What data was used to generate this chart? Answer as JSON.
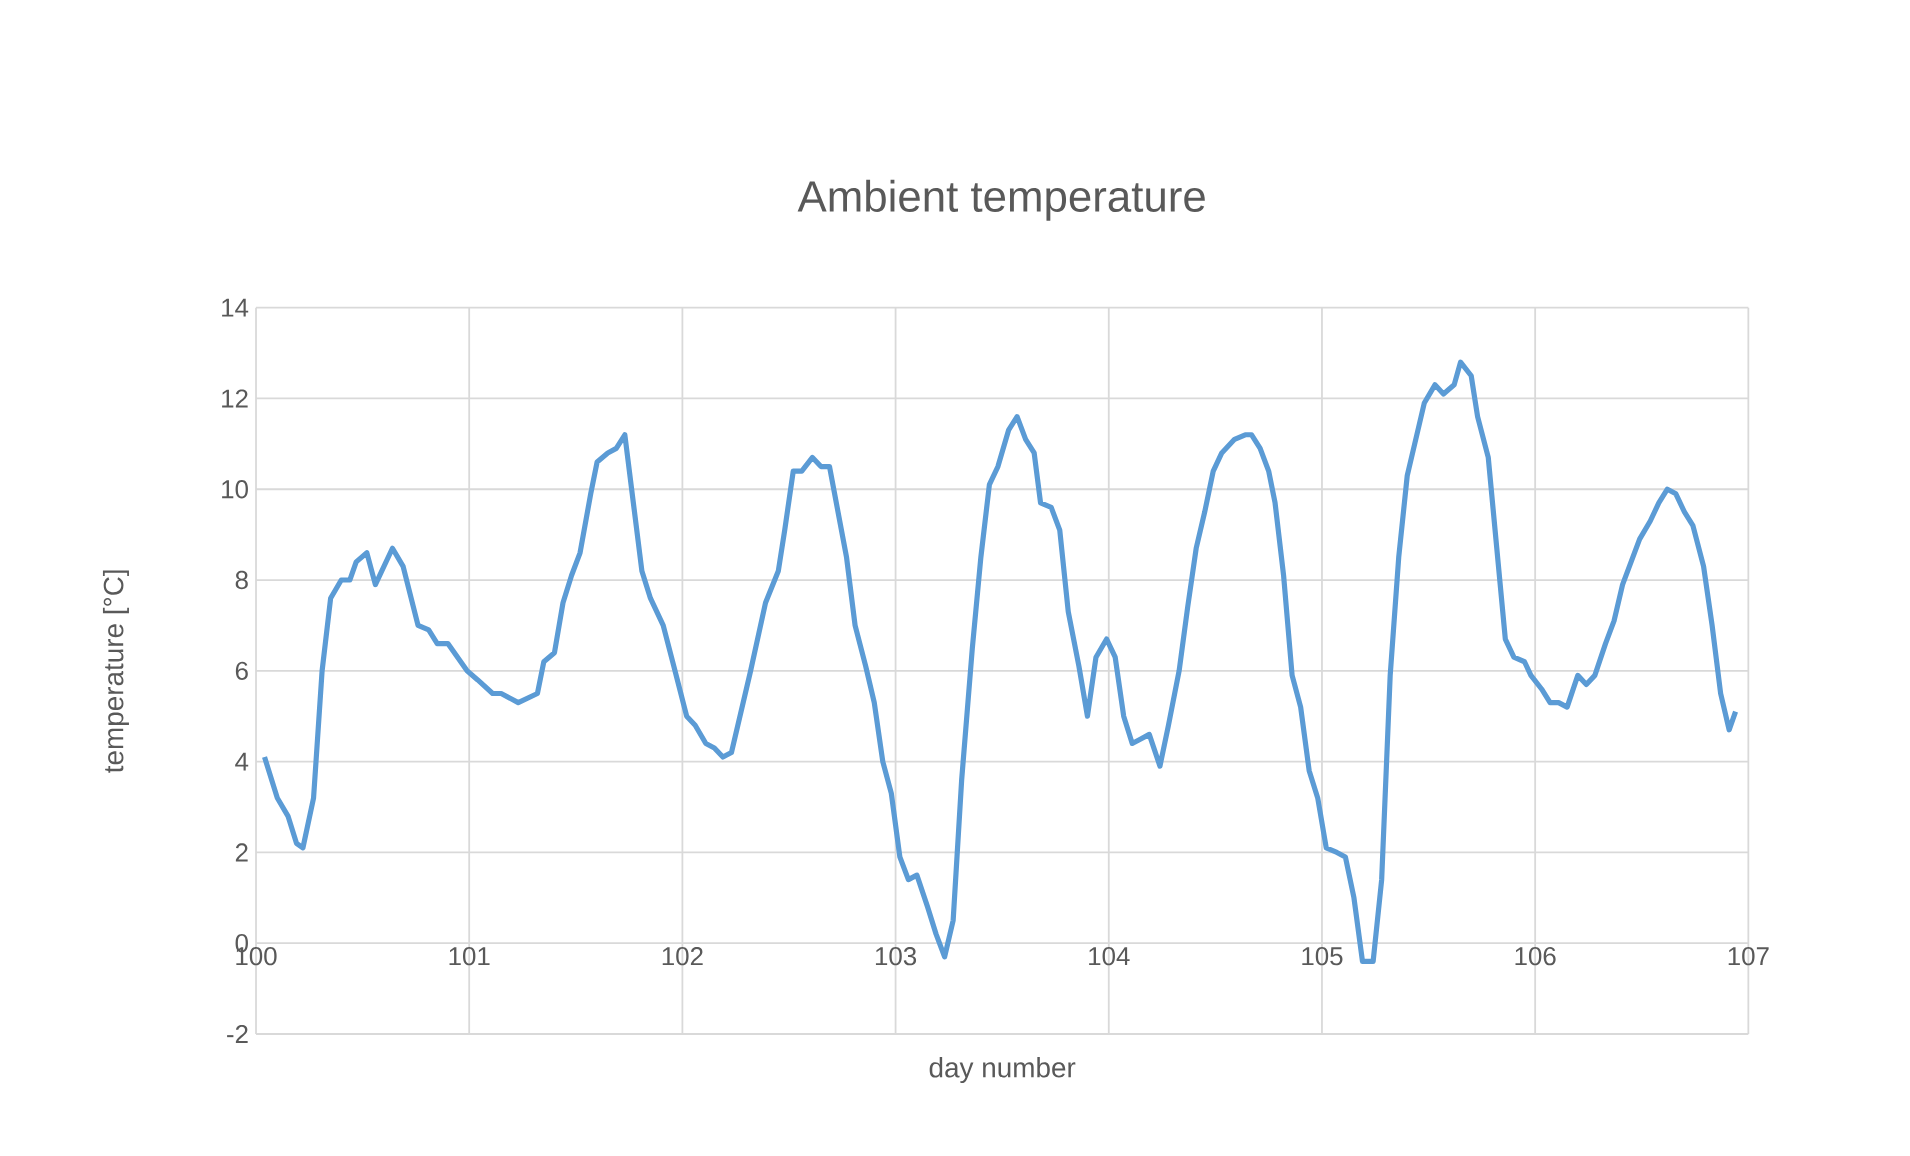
{
  "chart_data": {
    "type": "line",
    "title": "Ambient temperature",
    "xlabel": "day number",
    "ylabel": "temperature [°C]",
    "xlim": [
      100,
      107
    ],
    "xticks": [
      100,
      101,
      102,
      103,
      104,
      105,
      106,
      107
    ],
    "ylim": [
      -2,
      14
    ],
    "yticks": [
      -2,
      0,
      2,
      4,
      6,
      8,
      10,
      12,
      14
    ],
    "grid": true,
    "marker": "none",
    "line_style": "solid",
    "series": [
      {
        "color": "#5b9bd5",
        "x": [
          100.04,
          100.1,
          100.15,
          100.19,
          100.22,
          100.27,
          100.31,
          100.35,
          100.4,
          100.44,
          100.47,
          100.52,
          100.56,
          100.64,
          100.69,
          100.76,
          100.81,
          100.85,
          100.9,
          100.99,
          101.04,
          101.11,
          101.15,
          101.23,
          101.32,
          101.35,
          101.4,
          101.44,
          101.48,
          101.52,
          101.57,
          101.6,
          101.65,
          101.69,
          101.73,
          101.77,
          101.81,
          101.85,
          101.91,
          101.96,
          102.02,
          102.06,
          102.11,
          102.15,
          102.19,
          102.23,
          102.32,
          102.39,
          102.45,
          102.48,
          102.52,
          102.56,
          102.61,
          102.65,
          102.69,
          102.73,
          102.77,
          102.81,
          102.86,
          102.9,
          102.94,
          102.98,
          103.02,
          103.06,
          103.1,
          103.15,
          103.19,
          103.23,
          103.27,
          103.31,
          103.36,
          103.4,
          103.44,
          103.48,
          103.53,
          103.57,
          103.61,
          103.65,
          103.68,
          103.73,
          103.77,
          103.81,
          103.86,
          103.9,
          103.94,
          103.99,
          104.03,
          104.07,
          104.11,
          104.15,
          104.19,
          104.24,
          104.28,
          104.33,
          104.37,
          104.41,
          104.45,
          104.49,
          104.53,
          104.59,
          104.64,
          104.67,
          104.71,
          104.75,
          104.78,
          104.82,
          104.86,
          104.9,
          104.94,
          104.98,
          105.02,
          105.07,
          105.11,
          105.15,
          105.19,
          105.24,
          105.28,
          105.32,
          105.36,
          105.4,
          105.45,
          105.48,
          105.53,
          105.57,
          105.62,
          105.65,
          105.7,
          105.73,
          105.78,
          105.82,
          105.86,
          105.9,
          105.95,
          105.98,
          106.03,
          106.07,
          106.11,
          106.15,
          106.2,
          106.24,
          106.28,
          106.33,
          106.37,
          106.41,
          106.45,
          106.49,
          106.54,
          106.58,
          106.62,
          106.66,
          106.7,
          106.74,
          106.79,
          106.83,
          106.87,
          106.91,
          106.94
        ],
        "values": [
          4.1,
          3.2,
          2.8,
          2.2,
          2.1,
          3.2,
          6.0,
          7.6,
          8.0,
          8.0,
          8.4,
          8.6,
          7.9,
          8.7,
          8.3,
          7.0,
          6.9,
          6.6,
          6.6,
          6.0,
          5.8,
          5.5,
          5.5,
          5.3,
          5.5,
          6.2,
          6.4,
          7.5,
          8.1,
          8.6,
          9.9,
          10.6,
          10.8,
          10.9,
          11.2,
          9.7,
          8.2,
          7.6,
          7.0,
          6.1,
          5.0,
          4.8,
          4.4,
          4.3,
          4.1,
          4.2,
          6.0,
          7.5,
          8.2,
          9.1,
          10.4,
          10.4,
          10.7,
          10.5,
          10.5,
          9.5,
          8.5,
          7.0,
          6.1,
          5.3,
          4.0,
          3.3,
          1.9,
          1.4,
          1.5,
          0.8,
          0.2,
          -0.3,
          0.5,
          3.6,
          6.5,
          8.5,
          10.1,
          10.5,
          11.3,
          11.6,
          11.1,
          10.8,
          9.7,
          9.6,
          9.1,
          7.3,
          6.1,
          5.0,
          6.3,
          6.7,
          6.3,
          5.0,
          4.4,
          4.5,
          4.6,
          3.9,
          4.8,
          6.0,
          7.4,
          8.7,
          9.5,
          10.4,
          10.8,
          11.1,
          11.2,
          11.2,
          10.9,
          10.4,
          9.7,
          8.1,
          5.9,
          5.2,
          3.8,
          3.2,
          2.1,
          2.0,
          1.9,
          1.0,
          -0.4,
          -0.4,
          1.4,
          5.9,
          8.5,
          10.3,
          11.3,
          11.9,
          12.3,
          12.1,
          12.3,
          12.8,
          12.5,
          11.6,
          10.7,
          8.7,
          6.7,
          6.3,
          6.2,
          5.9,
          5.6,
          5.3,
          5.3,
          5.2,
          5.9,
          5.7,
          5.9,
          6.6,
          7.1,
          7.9,
          8.4,
          8.9,
          9.3,
          9.7,
          10.0,
          9.9,
          9.5,
          9.2,
          8.3,
          7.0,
          5.5,
          4.7,
          5.1
        ]
      }
    ]
  }
}
